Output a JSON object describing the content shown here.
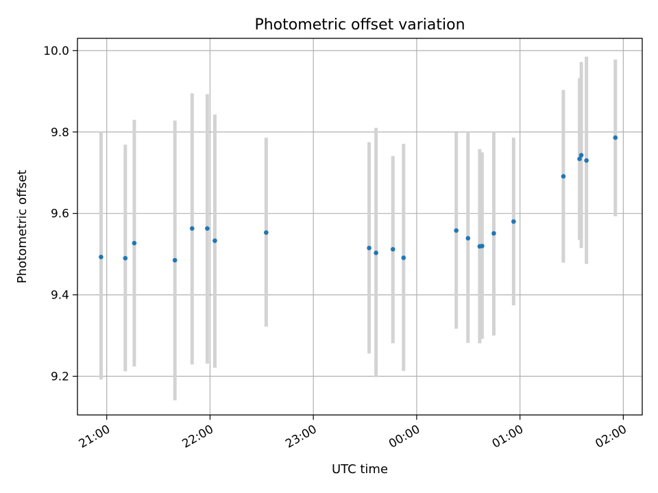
{
  "chart_data": {
    "type": "scatter",
    "title": "Photometric offset variation",
    "xlabel": "UTC time",
    "ylabel": "Photometric offset",
    "grid": true,
    "x_unit": "minutes since 20:30 UTC",
    "xlim": [
      13,
      341
    ],
    "ylim": [
      9.105,
      10.03
    ],
    "x_ticks": [
      {
        "value": 30,
        "label": "21:00"
      },
      {
        "value": 90,
        "label": "22:00"
      },
      {
        "value": 150,
        "label": "23:00"
      },
      {
        "value": 210,
        "label": "00:00"
      },
      {
        "value": 270,
        "label": "01:00"
      },
      {
        "value": 330,
        "label": "02:00"
      }
    ],
    "y_ticks": [
      {
        "value": 9.2,
        "label": "9.2"
      },
      {
        "value": 9.4,
        "label": "9.4"
      },
      {
        "value": 9.6,
        "label": "9.6"
      },
      {
        "value": 9.8,
        "label": "9.8"
      },
      {
        "value": 10.0,
        "label": "10.0"
      }
    ],
    "point_color": "#1f77b4",
    "errorbar_color": "#d3d3d3",
    "points": [
      {
        "x": 26.7,
        "y": 9.493,
        "ylow": 9.192,
        "yhigh": 9.8
      },
      {
        "x": 40.8,
        "y": 9.49,
        "ylow": 9.212,
        "yhigh": 9.769
      },
      {
        "x": 46.0,
        "y": 9.527,
        "ylow": 9.224,
        "yhigh": 9.83
      },
      {
        "x": 69.6,
        "y": 9.485,
        "ylow": 9.141,
        "yhigh": 9.828
      },
      {
        "x": 79.6,
        "y": 9.563,
        "ylow": 9.229,
        "yhigh": 9.895
      },
      {
        "x": 88.4,
        "y": 9.563,
        "ylow": 9.231,
        "yhigh": 9.893
      },
      {
        "x": 92.8,
        "y": 9.533,
        "ylow": 9.221,
        "yhigh": 9.843
      },
      {
        "x": 122.6,
        "y": 9.553,
        "ylow": 9.322,
        "yhigh": 9.786
      },
      {
        "x": 182.4,
        "y": 9.515,
        "ylow": 9.256,
        "yhigh": 9.775
      },
      {
        "x": 186.4,
        "y": 9.503,
        "ylow": 9.198,
        "yhigh": 9.81
      },
      {
        "x": 196.2,
        "y": 9.512,
        "ylow": 9.281,
        "yhigh": 9.741
      },
      {
        "x": 202.4,
        "y": 9.491,
        "ylow": 9.213,
        "yhigh": 9.771
      },
      {
        "x": 233.0,
        "y": 9.558,
        "ylow": 9.317,
        "yhigh": 9.799
      },
      {
        "x": 239.8,
        "y": 9.539,
        "ylow": 9.282,
        "yhigh": 9.8
      },
      {
        "x": 246.6,
        "y": 9.519,
        "ylow": 9.281,
        "yhigh": 9.758
      },
      {
        "x": 248.0,
        "y": 9.52,
        "ylow": 9.292,
        "yhigh": 9.75
      },
      {
        "x": 254.8,
        "y": 9.551,
        "ylow": 9.3,
        "yhigh": 9.8
      },
      {
        "x": 266.3,
        "y": 9.58,
        "ylow": 9.374,
        "yhigh": 9.786
      },
      {
        "x": 295.2,
        "y": 9.691,
        "ylow": 9.479,
        "yhigh": 9.903
      },
      {
        "x": 304.6,
        "y": 9.734,
        "ylow": 9.535,
        "yhigh": 9.932
      },
      {
        "x": 305.6,
        "y": 9.743,
        "ylow": 9.515,
        "yhigh": 9.972
      },
      {
        "x": 308.6,
        "y": 9.73,
        "ylow": 9.476,
        "yhigh": 9.985
      },
      {
        "x": 325.4,
        "y": 9.786,
        "ylow": 9.593,
        "yhigh": 9.978
      }
    ]
  }
}
